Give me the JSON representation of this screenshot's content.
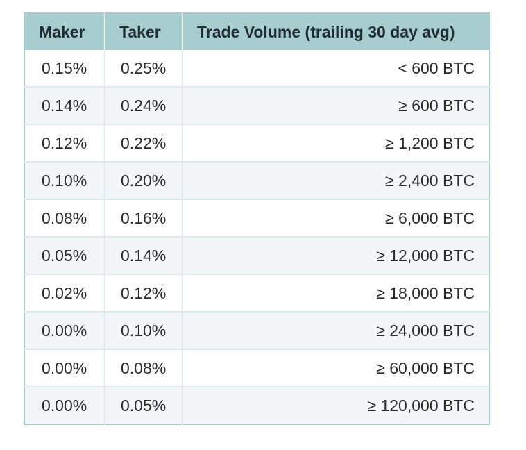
{
  "table": {
    "headers": {
      "maker": "Maker",
      "taker": "Taker",
      "volume": "Trade Volume (trailing 30 day avg)"
    },
    "rows": [
      {
        "maker": "0.15%",
        "taker": "0.25%",
        "volume": "< 600 BTC"
      },
      {
        "maker": "0.14%",
        "taker": "0.24%",
        "volume": "≥ 600 BTC"
      },
      {
        "maker": "0.12%",
        "taker": "0.22%",
        "volume": "≥ 1,200 BTC"
      },
      {
        "maker": "0.10%",
        "taker": "0.20%",
        "volume": "≥ 2,400 BTC"
      },
      {
        "maker": "0.08%",
        "taker": "0.16%",
        "volume": "≥ 6,000 BTC"
      },
      {
        "maker": "0.05%",
        "taker": "0.14%",
        "volume": "≥ 12,000 BTC"
      },
      {
        "maker": "0.02%",
        "taker": "0.12%",
        "volume": "≥ 18,000 BTC"
      },
      {
        "maker": "0.00%",
        "taker": "0.10%",
        "volume": "≥ 24,000 BTC"
      },
      {
        "maker": "0.00%",
        "taker": "0.08%",
        "volume": "≥ 60,000 BTC"
      },
      {
        "maker": "0.00%",
        "taker": "0.05%",
        "volume": "≥ 120,000 BTC"
      }
    ]
  },
  "colors": {
    "header_background": "#a8cdcf",
    "border": "#a6c9cb",
    "row_alt_background": "#f2f6f8"
  }
}
